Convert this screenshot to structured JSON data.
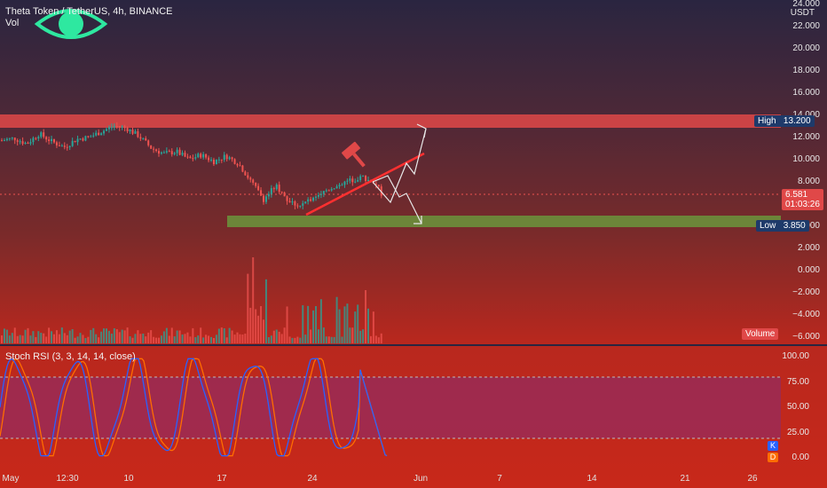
{
  "header": {
    "symbol": "Theta Token / TetherUS, 4h, BINANCE",
    "vol_label": "Vol"
  },
  "price_axis": {
    "currency": "USDT",
    "ticks": [
      "24.000",
      "22.000",
      "20.000",
      "18.000",
      "16.000",
      "14.000",
      "12.000",
      "10.000",
      "8.000",
      "6.000",
      "4.000",
      "2.000",
      "0.000",
      "−2.000",
      "−4.000",
      "−6.000"
    ]
  },
  "markers": {
    "high_label": "High",
    "high_value": "13.200",
    "low_label": "Low",
    "low_value": "3.850",
    "last_price": "6.581",
    "countdown": "01:03:26",
    "volume_label": "Volume"
  },
  "rsi": {
    "title": "Stoch RSI (3, 3, 14, 14, close)",
    "ticks": [
      "100.00",
      "75.00",
      "50.00",
      "25.00",
      "0.00"
    ],
    "k_label": "K",
    "d_label": "D"
  },
  "time_axis": {
    "labels": [
      "May",
      "12:30",
      "10",
      "17",
      "24",
      "Jun",
      "7",
      "14",
      "21",
      "26"
    ]
  },
  "colors": {
    "up": "#26a69a",
    "down": "#ef5350",
    "high_zone": "#e04848",
    "low_zone": "#6b8a3a",
    "trendline": "#ff3030",
    "k_line": "#2962ff",
    "d_line": "#ff6d00",
    "marker_blue": "#1e3a6a"
  },
  "chart_data": {
    "type": "candlestick",
    "timeframe": "4h",
    "price_range": [
      -6,
      24
    ],
    "high_zone": 13.2,
    "low_zone": 3.85,
    "last_price": 6.581,
    "close_path": [
      [
        0,
        11.5
      ],
      [
        10,
        11.7
      ],
      [
        20,
        11.2
      ],
      [
        30,
        12.1
      ],
      [
        40,
        11.4
      ],
      [
        50,
        10.9
      ],
      [
        60,
        11.6
      ],
      [
        70,
        11.8
      ],
      [
        80,
        12.3
      ],
      [
        90,
        12.8
      ],
      [
        100,
        12.6
      ],
      [
        110,
        11.9
      ],
      [
        120,
        10.8
      ],
      [
        130,
        10.3
      ],
      [
        140,
        10.5
      ],
      [
        150,
        9.8
      ],
      [
        160,
        10.2
      ],
      [
        170,
        9.6
      ],
      [
        180,
        10.1
      ],
      [
        190,
        9.4
      ],
      [
        200,
        7.8
      ],
      [
        210,
        6.2
      ],
      [
        220,
        7.4
      ],
      [
        230,
        6.0
      ],
      [
        240,
        5.6
      ],
      [
        250,
        6.4
      ],
      [
        260,
        7.0
      ],
      [
        270,
        7.5
      ],
      [
        280,
        7.9
      ],
      [
        290,
        8.2
      ],
      [
        300,
        7.6
      ],
      [
        305,
        6.6
      ]
    ],
    "projections": {
      "bullish_target": 13.6,
      "bearish_target": 3.6
    },
    "stoch_rsi": {
      "range": [
        0,
        100
      ],
      "overbought": 80,
      "oversold": 20
    }
  }
}
